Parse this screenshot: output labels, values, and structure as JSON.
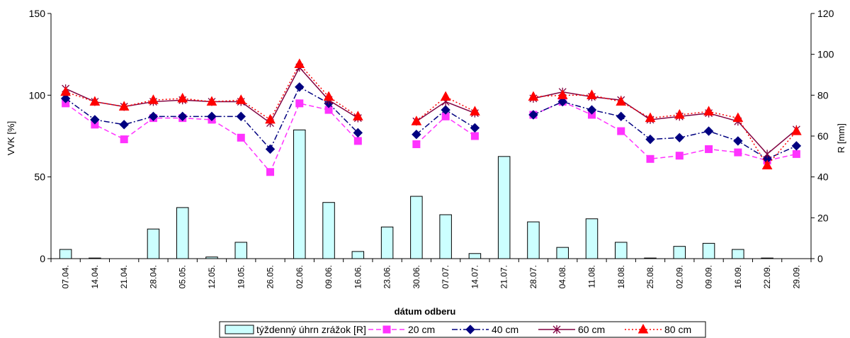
{
  "chart_data": {
    "type": "bar+line",
    "xlabel": "dátum odberu",
    "ylabel_left": "VVK [%]",
    "ylabel_right": "R [mm]",
    "ylim_left": [
      0,
      150
    ],
    "yticks_left": [
      "0",
      "50",
      "100",
      "150"
    ],
    "ylim_right": [
      0,
      120
    ],
    "yticks_right": [
      "0",
      "20",
      "40",
      "60",
      "80",
      "100",
      "120"
    ],
    "categories": [
      "07.04.",
      "14.04.",
      "21.04.",
      "28.04.",
      "05.05.",
      "12.05.",
      "19.05.",
      "26.05.",
      "02.06.",
      "09.06.",
      "16.06.",
      "23.06.",
      "30.06.",
      "07.07.",
      "14.07.",
      "21.07.",
      "28.07.",
      "04.08.",
      "11.08.",
      "18.08.",
      "25.08.",
      "02.09.",
      "09.09.",
      "16.09.",
      "22.09.",
      "29.09."
    ],
    "bars": {
      "name": "týždenný úhrn zrážok [R]",
      "axis": "right",
      "color": "#ccffff",
      "values": [
        4.5,
        0.3,
        0,
        14.5,
        25,
        0.8,
        8,
        0,
        63,
        27.5,
        3.5,
        15.5,
        30.5,
        21.5,
        2.5,
        50,
        18,
        5.5,
        19.5,
        8,
        0.3,
        6,
        7.5,
        4.5,
        0.3,
        0
      ]
    },
    "series": [
      {
        "name": "20 cm",
        "axis": "left",
        "color": "#ff33ff",
        "marker": "square",
        "dash": "7,4",
        "values": [
          95,
          82,
          73,
          86,
          86,
          85,
          74,
          53,
          95,
          91,
          72,
          null,
          70,
          87,
          75,
          null,
          88,
          96,
          88,
          78,
          61,
          63,
          67,
          65,
          60,
          64
        ]
      },
      {
        "name": "40 cm",
        "axis": "left",
        "color": "#000080",
        "marker": "diamond",
        "dash": "8,3,2,3",
        "values": [
          98,
          85,
          82,
          87,
          87,
          87,
          87,
          67,
          105,
          95,
          77,
          null,
          76,
          91,
          80,
          null,
          88,
          96,
          91,
          87,
          73,
          74,
          78,
          72,
          61,
          69
        ]
      },
      {
        "name": "60 cm",
        "axis": "left",
        "color": "#800040",
        "marker": "star",
        "dash": "",
        "values": [
          104,
          96,
          93,
          96,
          97,
          96,
          96,
          83,
          117,
          97,
          86,
          null,
          84,
          96,
          89,
          null,
          98,
          102,
          99,
          97,
          85,
          87,
          89,
          84,
          64,
          79
        ]
      },
      {
        "name": "80 cm",
        "axis": "left",
        "color": "#ff0000",
        "marker": "triangle",
        "dash": "2,3",
        "values": [
          102,
          96,
          93,
          97,
          98,
          96,
          97,
          85,
          119,
          99,
          87,
          null,
          84,
          99,
          90,
          null,
          99,
          100,
          100,
          96,
          86,
          88,
          90,
          86,
          57,
          78
        ]
      }
    ],
    "legend_position": "bottom",
    "grid": false
  }
}
